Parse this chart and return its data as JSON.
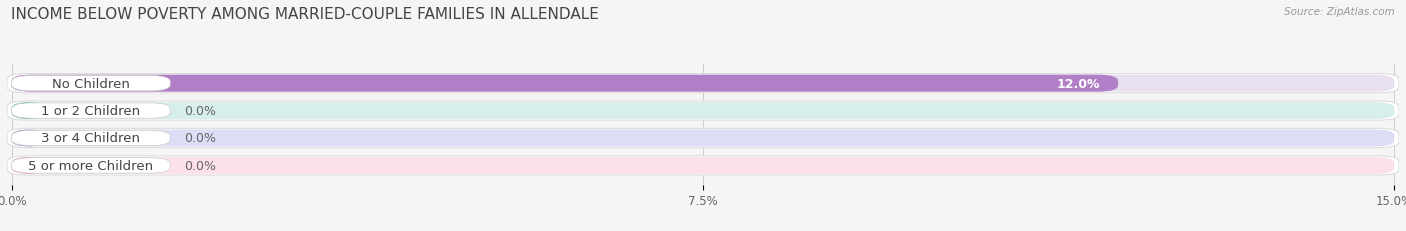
{
  "title": "INCOME BELOW POVERTY AMONG MARRIED-COUPLE FAMILIES IN ALLENDALE",
  "source": "Source: ZipAtlas.com",
  "categories": [
    "No Children",
    "1 or 2 Children",
    "3 or 4 Children",
    "5 or more Children"
  ],
  "values": [
    12.0,
    0.0,
    0.0,
    0.0
  ],
  "bar_colors": [
    "#b07fc7",
    "#5bbcb0",
    "#9999cc",
    "#f099b0"
  ],
  "bar_bg_colors": [
    "#e8e0f0",
    "#d8eeed",
    "#ddddf5",
    "#fce0ea"
  ],
  "xlim": [
    0,
    15.0
  ],
  "xticks": [
    0.0,
    7.5,
    15.0
  ],
  "xtick_labels": [
    "0.0%",
    "7.5%",
    "15.0%"
  ],
  "background_color": "#f5f5f5",
  "bar_height": 0.62,
  "label_fontsize": 9.5,
  "title_fontsize": 11,
  "value_label_fontsize": 9
}
